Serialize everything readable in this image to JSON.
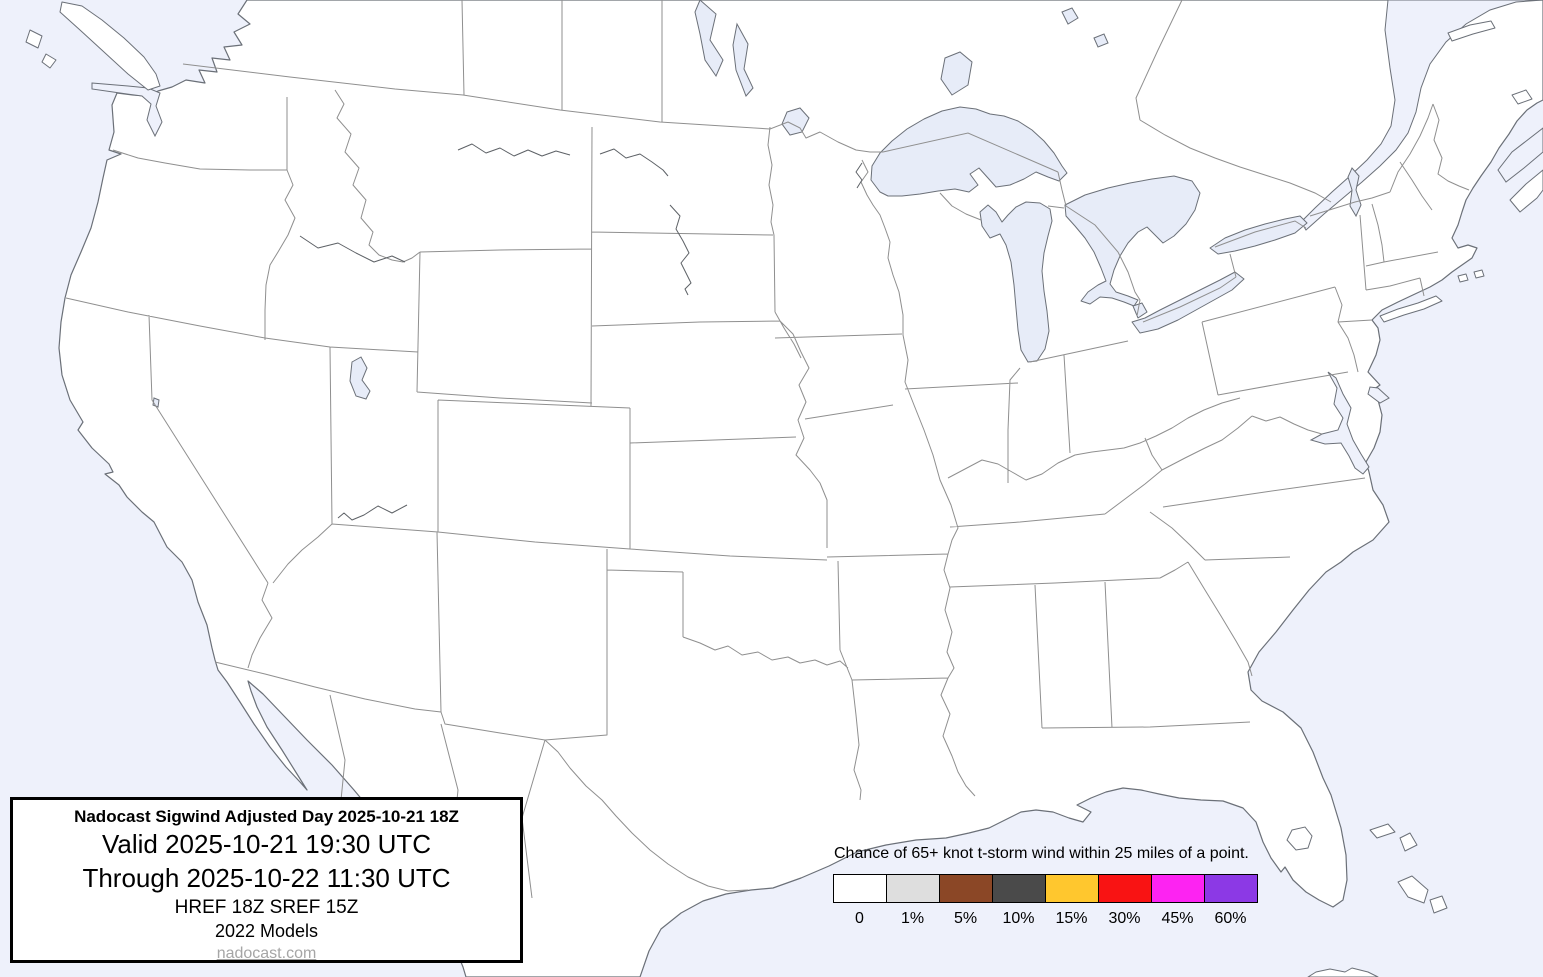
{
  "info_box": {
    "title": "Nadocast Sigwind Adjusted Day 2025-10-21 18Z",
    "valid": "Valid 2025-10-21 19:30 UTC",
    "through": "Through 2025-10-22 11:30 UTC",
    "models": "HREF 18Z SREF 15Z",
    "models_year": "2022 Models",
    "site_link": "nadocast.com"
  },
  "legend": {
    "title": "Chance of 65+ knot t-storm wind within 25 miles of a point.",
    "items": [
      {
        "label": "0",
        "color": "#ffffff"
      },
      {
        "label": "1%",
        "color": "#dedede"
      },
      {
        "label": "5%",
        "color": "#8b4726"
      },
      {
        "label": "10%",
        "color": "#4a4a4a"
      },
      {
        "label": "15%",
        "color": "#ffc72e"
      },
      {
        "label": "30%",
        "color": "#f91313"
      },
      {
        "label": "45%",
        "color": "#fd23f2"
      },
      {
        "label": "60%",
        "color": "#8c39e5"
      }
    ]
  },
  "map": {
    "water_color": "#eef1fb",
    "lake_color": "#e7ecf8",
    "land_color": "#ffffff",
    "coast_color": "#6b7078",
    "state_border_color": "#8f8f8f"
  }
}
